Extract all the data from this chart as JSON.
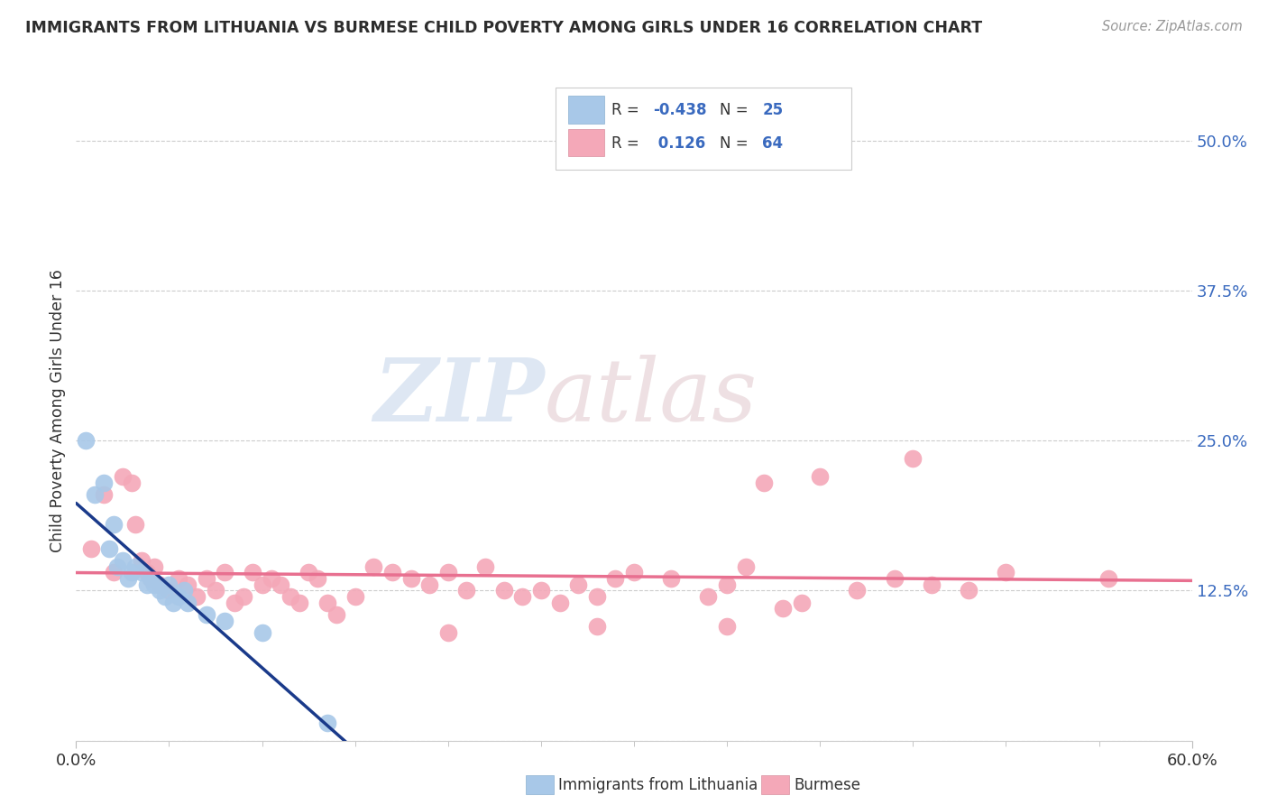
{
  "title": "IMMIGRANTS FROM LITHUANIA VS BURMESE CHILD POVERTY AMONG GIRLS UNDER 16 CORRELATION CHART",
  "source": "Source: ZipAtlas.com",
  "ylabel": "Child Poverty Among Girls Under 16",
  "series1_label": "Immigrants from Lithuania",
  "series2_label": "Burmese",
  "series1_R": -0.438,
  "series1_N": 25,
  "series2_R": 0.126,
  "series2_N": 64,
  "series1_color": "#a8c8e8",
  "series2_color": "#f4a8b8",
  "series1_line_color": "#1a3a8a",
  "series2_line_color": "#e87090",
  "background_color": "#ffffff",
  "xlim": [
    0.0,
    0.6
  ],
  "ylim": [
    0.0,
    0.55
  ],
  "grid_color": "#cccccc",
  "title_color": "#2d2d2d",
  "series1_x": [
    0.5,
    1.0,
    1.5,
    1.8,
    2.0,
    2.2,
    2.5,
    2.8,
    3.0,
    3.2,
    3.5,
    3.8,
    4.0,
    4.2,
    4.5,
    4.8,
    5.0,
    5.2,
    5.5,
    5.8,
    6.0,
    7.0,
    8.0,
    10.0,
    13.5
  ],
  "series1_y": [
    25.0,
    20.5,
    21.5,
    16.0,
    18.0,
    14.5,
    15.0,
    13.5,
    14.0,
    14.5,
    14.0,
    13.0,
    13.5,
    13.0,
    12.5,
    12.0,
    13.0,
    11.5,
    12.0,
    12.5,
    11.5,
    10.5,
    10.0,
    9.0,
    1.5
  ],
  "series2_x": [
    0.8,
    1.5,
    2.0,
    2.5,
    3.0,
    3.2,
    3.5,
    3.8,
    4.0,
    4.2,
    4.5,
    5.0,
    5.5,
    6.0,
    6.5,
    7.0,
    7.5,
    8.0,
    8.5,
    9.0,
    9.5,
    10.0,
    10.5,
    11.0,
    11.5,
    12.0,
    12.5,
    13.0,
    13.5,
    14.0,
    15.0,
    16.0,
    17.0,
    18.0,
    19.0,
    20.0,
    21.0,
    22.0,
    23.0,
    24.0,
    25.0,
    26.0,
    27.0,
    28.0,
    29.0,
    30.0,
    32.0,
    34.0,
    35.0,
    36.0,
    37.0,
    38.0,
    39.0,
    40.0,
    42.0,
    44.0,
    46.0,
    48.0,
    50.0,
    35.0,
    28.0,
    20.0,
    55.5,
    45.0
  ],
  "series2_y": [
    16.0,
    20.5,
    14.0,
    22.0,
    21.5,
    18.0,
    15.0,
    14.0,
    13.5,
    14.5,
    13.0,
    12.5,
    13.5,
    13.0,
    12.0,
    13.5,
    12.5,
    14.0,
    11.5,
    12.0,
    14.0,
    13.0,
    13.5,
    13.0,
    12.0,
    11.5,
    14.0,
    13.5,
    11.5,
    10.5,
    12.0,
    14.5,
    14.0,
    13.5,
    13.0,
    14.0,
    12.5,
    14.5,
    12.5,
    12.0,
    12.5,
    11.5,
    13.0,
    12.0,
    13.5,
    14.0,
    13.5,
    12.0,
    13.0,
    14.5,
    21.5,
    11.0,
    11.5,
    22.0,
    12.5,
    13.5,
    13.0,
    12.5,
    14.0,
    9.5,
    9.5,
    9.0,
    13.5,
    23.5
  ]
}
